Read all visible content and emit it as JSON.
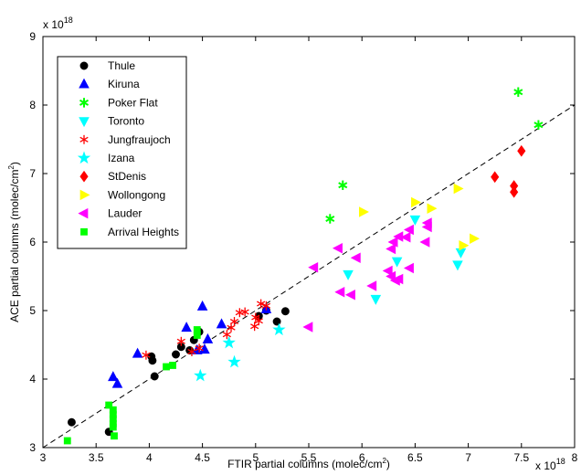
{
  "chart_data": {
    "type": "scatter",
    "title": "",
    "xlabel": "FTIR partial columns (molec/cm",
    "xlabel_sup": "2",
    "xlabel_end": ")",
    "ylabel": "ACE partial columns (molec/cm",
    "ylabel_sup": "2",
    "ylabel_end": ")",
    "x_multiplier": {
      "base": "x 10",
      "exp": "18"
    },
    "y_multiplier": {
      "base": "x 10",
      "exp": "18"
    },
    "xlim": [
      3,
      8
    ],
    "ylim": [
      3,
      9
    ],
    "xticks": [
      3,
      3.5,
      4,
      4.5,
      5,
      5.5,
      6,
      6.5,
      7,
      7.5,
      8
    ],
    "xtick_labels": [
      "3",
      "3.5",
      "4",
      "4.5",
      "5",
      "5.5",
      "6",
      "6.5",
      "7",
      "7.5",
      "8"
    ],
    "yticks": [
      3,
      4,
      5,
      6,
      7,
      8,
      9
    ],
    "ytick_labels": [
      "3",
      "4",
      "5",
      "6",
      "7",
      "8",
      "9"
    ],
    "grid": false,
    "legend_position": "top-left",
    "reference_line": {
      "style": "dashed",
      "color": "#000000",
      "points": [
        [
          3,
          3
        ],
        [
          8,
          8
        ]
      ]
    },
    "series": [
      {
        "name": "Thule",
        "marker": "circle",
        "color": "#000000",
        "points": [
          [
            3.27,
            3.37
          ],
          [
            3.62,
            3.23
          ],
          [
            4.03,
            4.27
          ],
          [
            4.05,
            4.04
          ],
          [
            4.02,
            4.33
          ],
          [
            4.25,
            4.36
          ],
          [
            4.3,
            4.47
          ],
          [
            4.38,
            4.42
          ],
          [
            4.42,
            4.57
          ],
          [
            4.47,
            4.69
          ],
          [
            5.1,
            5.0
          ],
          [
            5.2,
            4.84
          ],
          [
            5.28,
            4.99
          ],
          [
            5.03,
            4.92
          ]
        ]
      },
      {
        "name": "Kiruna",
        "marker": "triangle-up",
        "color": "#0000ff",
        "points": [
          [
            3.66,
            4.03
          ],
          [
            3.7,
            3.93
          ],
          [
            3.89,
            4.37
          ],
          [
            4.35,
            4.75
          ],
          [
            4.5,
            5.06
          ],
          [
            4.45,
            4.42
          ],
          [
            4.52,
            4.43
          ],
          [
            4.55,
            4.58
          ],
          [
            4.68,
            4.8
          ],
          [
            5.1,
            5.02
          ]
        ]
      },
      {
        "name": "Poker Flat",
        "marker": "asterisk",
        "color": "#00ff00",
        "points": [
          [
            5.7,
            6.34
          ],
          [
            5.82,
            6.83
          ],
          [
            7.47,
            8.19
          ],
          [
            7.66,
            7.71
          ]
        ]
      },
      {
        "name": "Toronto",
        "marker": "triangle-down",
        "color": "#00ffff",
        "points": [
          [
            5.87,
            5.53
          ],
          [
            6.13,
            5.17
          ],
          [
            6.33,
            5.72
          ],
          [
            6.5,
            6.33
          ],
          [
            6.9,
            5.67
          ],
          [
            6.93,
            5.85
          ]
        ]
      },
      {
        "name": "Jungfraujoch",
        "marker": "star",
        "color": "#ff0000",
        "points": [
          [
            3.97,
            4.35
          ],
          [
            4.3,
            4.55
          ],
          [
            4.4,
            4.4
          ],
          [
            4.47,
            4.45
          ],
          [
            4.73,
            4.65
          ],
          [
            4.77,
            4.75
          ],
          [
            4.8,
            4.84
          ],
          [
            4.85,
            4.97
          ],
          [
            4.9,
            4.98
          ],
          [
            5.0,
            4.9
          ],
          [
            5.05,
            5.1
          ],
          [
            5.1,
            5.07
          ],
          [
            4.99,
            4.77
          ],
          [
            5.03,
            4.85
          ]
        ]
      },
      {
        "name": "Izana",
        "marker": "pentagram",
        "color": "#00ffff",
        "points": [
          [
            4.48,
            4.05
          ],
          [
            4.8,
            4.25
          ],
          [
            4.75,
            4.53
          ],
          [
            5.22,
            4.72
          ]
        ]
      },
      {
        "name": "StDenis",
        "marker": "diamond",
        "color": "#ff0000",
        "points": [
          [
            7.25,
            6.95
          ],
          [
            7.43,
            6.82
          ],
          [
            7.43,
            6.73
          ],
          [
            7.5,
            7.33
          ]
        ]
      },
      {
        "name": "Wollongong",
        "marker": "triangle-right",
        "color": "#ffff00",
        "points": [
          [
            6.01,
            6.44
          ],
          [
            6.5,
            6.58
          ],
          [
            6.65,
            6.49
          ],
          [
            6.9,
            6.78
          ],
          [
            6.95,
            5.95
          ],
          [
            7.05,
            6.05
          ]
        ]
      },
      {
        "name": "Lauder",
        "marker": "triangle-left",
        "color": "#ff00ff",
        "points": [
          [
            5.5,
            4.76
          ],
          [
            5.55,
            5.63
          ],
          [
            5.78,
            5.91
          ],
          [
            5.8,
            5.27
          ],
          [
            5.9,
            5.23
          ],
          [
            5.95,
            5.77
          ],
          [
            6.1,
            5.36
          ],
          [
            6.25,
            5.58
          ],
          [
            6.28,
            5.5
          ],
          [
            6.32,
            5.44
          ],
          [
            6.35,
            5.46
          ],
          [
            6.28,
            5.9
          ],
          [
            6.3,
            6.0
          ],
          [
            6.35,
            6.08
          ],
          [
            6.42,
            6.07
          ],
          [
            6.45,
            6.18
          ],
          [
            6.6,
            6.0
          ],
          [
            6.62,
            6.28
          ],
          [
            6.62,
            6.22
          ],
          [
            6.45,
            5.62
          ]
        ]
      },
      {
        "name": "Arrival Heights",
        "marker": "square",
        "color": "#00ff00",
        "points": [
          [
            3.23,
            3.1
          ],
          [
            3.62,
            3.62
          ],
          [
            3.66,
            3.55
          ],
          [
            3.66,
            3.48
          ],
          [
            3.66,
            3.42
          ],
          [
            3.66,
            3.35
          ],
          [
            3.66,
            3.3
          ],
          [
            3.67,
            3.17
          ],
          [
            4.16,
            4.18
          ],
          [
            4.22,
            4.2
          ],
          [
            4.45,
            4.72
          ],
          [
            4.45,
            4.64
          ]
        ]
      }
    ]
  }
}
